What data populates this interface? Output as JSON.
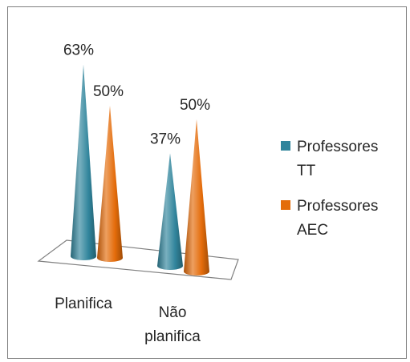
{
  "chart_data": {
    "type": "bar",
    "style": "3d-cone",
    "categories": [
      "Planifica",
      "Não planifica"
    ],
    "category_lines": [
      [
        "Planifica"
      ],
      [
        "Não",
        "planifica"
      ]
    ],
    "series": [
      {
        "name": "Professores TT",
        "legend_lines": [
          "Professores",
          "TT"
        ],
        "values": [
          63,
          37
        ],
        "color": "#31859C"
      },
      {
        "name": "Professores AEC",
        "legend_lines": [
          "Professores",
          "AEC"
        ],
        "values": [
          50,
          50
        ],
        "color": "#E46C0A"
      }
    ],
    "data_labels": [
      [
        "63%",
        "37%"
      ],
      [
        "50%",
        "50%"
      ]
    ],
    "value_unit": "%",
    "ylim": [
      0,
      70
    ],
    "grid": false,
    "legend_position": "right"
  }
}
